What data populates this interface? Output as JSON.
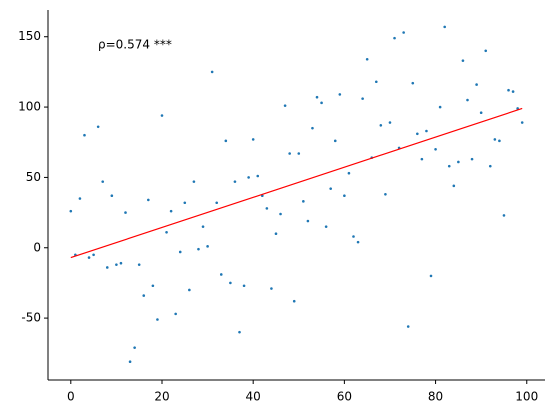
{
  "chart_data": {
    "type": "scatter",
    "annotation": "ρ=0.574 ***",
    "x": [
      0,
      1,
      2,
      3,
      4,
      5,
      6,
      7,
      8,
      9,
      10,
      11,
      12,
      13,
      14,
      15,
      16,
      17,
      18,
      19,
      20,
      21,
      22,
      23,
      24,
      25,
      26,
      27,
      28,
      29,
      30,
      31,
      32,
      33,
      34,
      35,
      36,
      37,
      38,
      39,
      40,
      41,
      42,
      43,
      44,
      45,
      46,
      47,
      48,
      49,
      50,
      51,
      52,
      53,
      54,
      55,
      56,
      57,
      58,
      59,
      60,
      61,
      62,
      63,
      64,
      65,
      66,
      67,
      68,
      69,
      70,
      71,
      72,
      73,
      74,
      75,
      76,
      77,
      78,
      79,
      80,
      81,
      82,
      83,
      84,
      85,
      86,
      87,
      88,
      89,
      90,
      91,
      92,
      93,
      94,
      95,
      96,
      97,
      98,
      99
    ],
    "values": [
      26,
      -5,
      35,
      80,
      -7,
      -5,
      86,
      47,
      -14,
      37,
      -12,
      -11,
      25,
      -81,
      -71,
      -12,
      -34,
      34,
      -27,
      -51,
      94,
      11,
      26,
      -47,
      -3,
      32,
      -30,
      47,
      -1,
      15,
      1,
      125,
      32,
      -19,
      76,
      -25,
      47,
      -60,
      -27,
      50,
      77,
      51,
      37,
      28,
      -29,
      10,
      24,
      101,
      67,
      -38,
      67,
      33,
      19,
      85,
      107,
      103,
      15,
      42,
      76,
      109,
      37,
      53,
      8,
      4,
      106,
      134,
      64,
      118,
      87,
      38,
      89,
      149,
      71,
      153,
      -56,
      117,
      81,
      63,
      83,
      -20,
      70,
      100,
      157,
      58,
      44,
      61,
      133,
      105,
      63,
      116,
      96,
      140,
      58,
      77,
      76,
      23,
      112,
      111,
      99,
      89
    ],
    "color": "#1f77b4",
    "fit": {
      "x": [
        0,
        99
      ],
      "values": [
        -7,
        99
      ],
      "color": "#ff0000"
    },
    "xlim": [
      -5,
      104
    ],
    "ylim": [
      -94,
      169
    ],
    "xticks": [
      0,
      20,
      40,
      60,
      80,
      100
    ],
    "yticks": [
      -50,
      0,
      50,
      100,
      150
    ]
  }
}
